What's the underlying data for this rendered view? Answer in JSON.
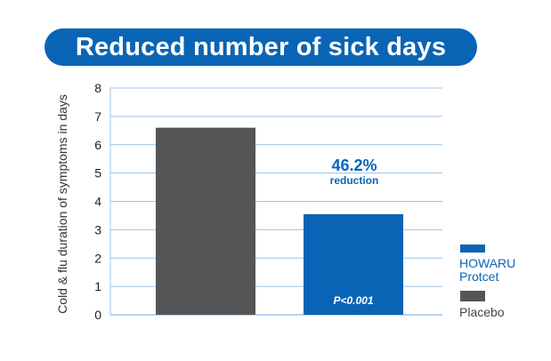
{
  "chart_data": {
    "type": "bar",
    "title": "Reduced number of sick days",
    "ylabel": "Cold & flu duration of symptoms in days",
    "xlabel": "",
    "ylim": [
      0,
      8
    ],
    "yticks": [
      "0",
      "1",
      "2",
      "3",
      "4",
      "5",
      "6",
      "7",
      "8"
    ],
    "grid": true,
    "legend_position": "right",
    "series": [
      {
        "name": "Placebo",
        "color": "#545557",
        "value": 6.6
      },
      {
        "name": "HOWARU Protcet",
        "name_line1": "HOWARU",
        "name_line2": "Protcet",
        "color": "#0a64b5",
        "value": 3.55
      }
    ],
    "annotations": {
      "reduction_value": "46.2%",
      "reduction_label": "reduction",
      "p_value": "P<0.001"
    },
    "colors": {
      "accent": "#0a64b5",
      "grid": "#9dc3e6",
      "placebo": "#545557"
    }
  }
}
